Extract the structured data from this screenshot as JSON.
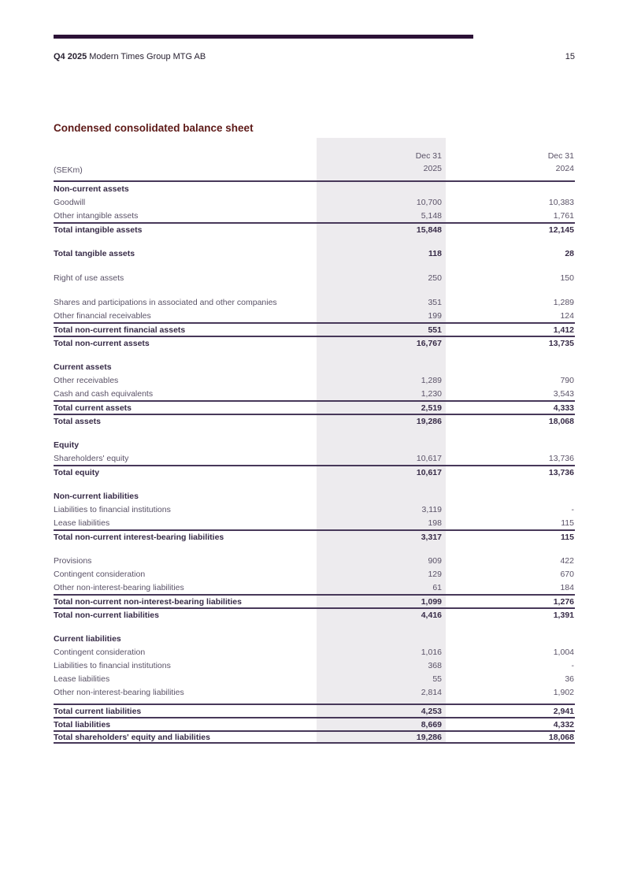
{
  "header": {
    "quarter": "Q4 2025",
    "company": "Modern Times Group MTG AB",
    "page_number": "15"
  },
  "title": "Condensed consolidated balance sheet",
  "colors": {
    "accent_bar": "#2c1237",
    "title_text": "#5e1a18",
    "rule": "#473859",
    "column_shade": "#edebee",
    "body_text": "#5a5267",
    "bold_text": "#372b47"
  },
  "table": {
    "unit_label": "(SEKm)",
    "columns": [
      {
        "period": "Dec 31",
        "year": "2025"
      },
      {
        "period": "Dec 31",
        "year": "2024"
      }
    ],
    "rows": [
      {
        "type": "section",
        "label": "Non-current assets",
        "v2025": "",
        "v2024": ""
      },
      {
        "type": "data",
        "label": "Goodwill",
        "v2025": "10,700",
        "v2024": "10,383"
      },
      {
        "type": "data",
        "label": "Other intangible assets",
        "v2025": "5,148",
        "v2024": "1,761"
      },
      {
        "type": "total",
        "label": "Total intangible assets",
        "v2025": "15,848",
        "v2024": "12,145"
      },
      {
        "type": "spacer"
      },
      {
        "type": "total-plain",
        "label": "Total tangible assets",
        "v2025": "118",
        "v2024": "28"
      },
      {
        "type": "spacer"
      },
      {
        "type": "data",
        "label": "Right of use assets",
        "v2025": "250",
        "v2024": "150"
      },
      {
        "type": "spacer"
      },
      {
        "type": "data",
        "label": "Shares and participations in associated and other companies",
        "v2025": "351",
        "v2024": "1,289"
      },
      {
        "type": "data",
        "label": "Other financial receivables",
        "v2025": "199",
        "v2024": "124"
      },
      {
        "type": "total",
        "label": "Total non-current financial assets",
        "v2025": "551",
        "v2024": "1,412"
      },
      {
        "type": "total",
        "label": "Total non-current assets",
        "v2025": "16,767",
        "v2024": "13,735"
      },
      {
        "type": "spacer"
      },
      {
        "type": "section",
        "label": "Current assets",
        "v2025": "",
        "v2024": ""
      },
      {
        "type": "data",
        "label": "Other receivables",
        "v2025": "1,289",
        "v2024": "790"
      },
      {
        "type": "data",
        "label": "Cash and cash equivalents",
        "v2025": "1,230",
        "v2024": "3,543"
      },
      {
        "type": "total",
        "label": "Total current assets",
        "v2025": "2,519",
        "v2024": "4,333"
      },
      {
        "type": "total",
        "label": "Total assets",
        "v2025": "19,286",
        "v2024": "18,068"
      },
      {
        "type": "spacer"
      },
      {
        "type": "section",
        "label": "Equity",
        "v2025": "",
        "v2024": ""
      },
      {
        "type": "data",
        "label": "Shareholders' equity",
        "v2025": "10,617",
        "v2024": "13,736"
      },
      {
        "type": "total",
        "label": "Total equity",
        "v2025": "10,617",
        "v2024": "13,736"
      },
      {
        "type": "spacer"
      },
      {
        "type": "section",
        "label": "Non-current liabilities",
        "v2025": "",
        "v2024": ""
      },
      {
        "type": "data",
        "label": "Liabilities to financial institutions",
        "v2025": "3,119",
        "v2024": "-"
      },
      {
        "type": "data",
        "label": "Lease liabilities",
        "v2025": "198",
        "v2024": "115"
      },
      {
        "type": "total",
        "label": "Total non-current interest-bearing liabilities",
        "v2025": "3,317",
        "v2024": "115"
      },
      {
        "type": "spacer"
      },
      {
        "type": "data",
        "label": "Provisions",
        "v2025": "909",
        "v2024": "422"
      },
      {
        "type": "data",
        "label": "Contingent consideration",
        "v2025": "129",
        "v2024": "670"
      },
      {
        "type": "data",
        "label": "Other non-interest-bearing liabilities",
        "v2025": "61",
        "v2024": "184"
      },
      {
        "type": "total",
        "label": "Total non-current non-interest-bearing liabilities",
        "v2025": "1,099",
        "v2024": "1,276"
      },
      {
        "type": "total",
        "label": "Total non-current liabilities",
        "v2025": "4,416",
        "v2024": "1,391"
      },
      {
        "type": "spacer"
      },
      {
        "type": "section",
        "label": "Current liabilities",
        "v2025": "",
        "v2024": ""
      },
      {
        "type": "data",
        "label": "Contingent consideration",
        "v2025": "1,016",
        "v2024": "1,004"
      },
      {
        "type": "data",
        "label": "Liabilities to financial institutions",
        "v2025": "368",
        "v2024": "-"
      },
      {
        "type": "data",
        "label": "Lease liabilities",
        "v2025": "55",
        "v2024": "36"
      },
      {
        "type": "data",
        "label": "Other non-interest-bearing liabilities",
        "v2025": "2,814",
        "v2024": "1,902"
      },
      {
        "type": "spacer",
        "small": true
      },
      {
        "type": "total",
        "label": "Total current liabilities",
        "v2025": "4,253",
        "v2024": "2,941"
      },
      {
        "type": "total",
        "label": "Total liabilities",
        "v2025": "8,669",
        "v2024": "4,332"
      },
      {
        "type": "grand",
        "label": "Total shareholders' equity and liabilities",
        "v2025": "19,286",
        "v2024": "18,068"
      }
    ]
  }
}
